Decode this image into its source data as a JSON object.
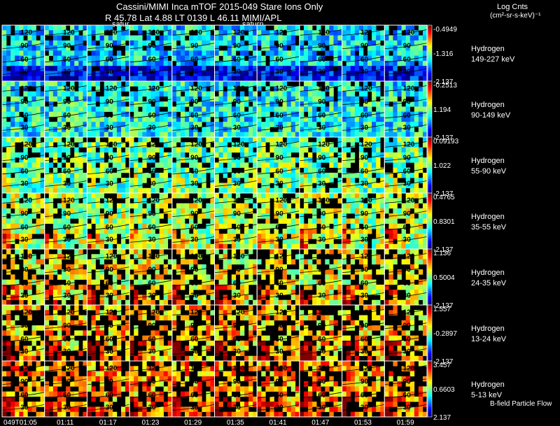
{
  "header": {
    "line1": "Cassini/MIMI Inca mTOF  2015-049   Stare   Ions Only",
    "line2": "R          45.78 Lat 4.88 LT 0139 L          46.11   MIMI/APL",
    "saturn_a": "satur",
    "saturn_b": "saturn",
    "units_title": "Log Cnts",
    "units_sub": "(cm²-sr-s-keV)⁻¹"
  },
  "footer": {
    "bfield": "B-field  Particle Flow"
  },
  "chart_data": {
    "type": "heatmap",
    "title": "Cassini/MIMI Inca mTOF  2015-049   Stare   Ions Only",
    "xlabel": "",
    "ylabel": "",
    "time_labels": [
      "049T01:05",
      "01:11",
      "01:17",
      "01:23",
      "01:29",
      "01:35",
      "01:41",
      "01:47",
      "01:53",
      "01:59"
    ],
    "contour_labels": [
      "120",
      "90",
      "60",
      "30"
    ],
    "rows": [
      {
        "species": "Hydrogen",
        "energy": "149-227 keV",
        "cmax": "-0.4949",
        "cmid": "-1.316",
        "cmin": "-2.137",
        "level": 0.35,
        "fill": 0.8,
        "warm": 0.0
      },
      {
        "species": "Hydrogen",
        "energy": "90-149 keV",
        "cmax": "-0.2513",
        "cmid": "1.194",
        "cmin": "-2.137",
        "level": 0.38,
        "fill": 0.82,
        "warm": 0.0
      },
      {
        "species": "Hydrogen",
        "energy": "55-90 keV",
        "cmax": "0.09193",
        "cmid": "1.022",
        "cmin": "-2.137",
        "level": 0.48,
        "fill": 0.72,
        "warm": 0.1
      },
      {
        "species": "Hydrogen",
        "energy": "35-55 keV",
        "cmax": "0.4765",
        "cmid": "0.8301",
        "cmin": "-2.137",
        "level": 0.55,
        "fill": 0.7,
        "warm": 0.25
      },
      {
        "species": "Hydrogen",
        "energy": "24-35 keV",
        "cmax": "1.136",
        "cmid": "0.5004",
        "cmin": "-2.137",
        "level": 0.62,
        "fill": 0.55,
        "warm": 0.3
      },
      {
        "species": "Hydrogen",
        "energy": "13-24 keV",
        "cmax": "1.557",
        "cmid": "-0.2897",
        "cmin": "-2.137",
        "level": 0.68,
        "fill": 0.5,
        "warm": 0.45
      },
      {
        "species": "Hydrogen",
        "energy": "5-13 keV",
        "cmax": "3.457",
        "cmid": "0.6603",
        "cmin": "2.137",
        "level": 0.72,
        "fill": 0.55,
        "warm": 0.3
      }
    ]
  }
}
